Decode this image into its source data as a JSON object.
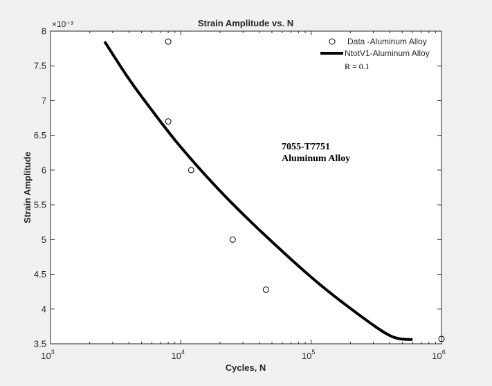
{
  "chart_data": {
    "type": "scatter",
    "title": "Strain Amplitude vs. N",
    "xlabel": "Cycles, N",
    "ylabel": "Strain Amplitude",
    "x_scale": "log",
    "xlim": [
      1000,
      1000000
    ],
    "ylim": [
      0.0035,
      0.008
    ],
    "y_exponent_label": "×10⁻³",
    "x_ticks": [
      {
        "value": 1000,
        "base": "10",
        "exp": "3"
      },
      {
        "value": 10000,
        "base": "10",
        "exp": "4"
      },
      {
        "value": 100000,
        "base": "10",
        "exp": "5"
      },
      {
        "value": 1000000,
        "base": "10",
        "exp": "6"
      }
    ],
    "y_ticks": [
      {
        "value": 0.0035,
        "label": "3.5"
      },
      {
        "value": 0.004,
        "label": "4"
      },
      {
        "value": 0.0045,
        "label": "4.5"
      },
      {
        "value": 0.005,
        "label": "5"
      },
      {
        "value": 0.0055,
        "label": "5.5"
      },
      {
        "value": 0.006,
        "label": "6"
      },
      {
        "value": 0.0065,
        "label": "6.5"
      },
      {
        "value": 0.007,
        "label": "7"
      },
      {
        "value": 0.0075,
        "label": "7.5"
      },
      {
        "value": 0.008,
        "label": "8"
      }
    ],
    "grid": false,
    "legend_position": "top-right",
    "series": [
      {
        "name": "Data -Aluminum Alloy",
        "kind": "markers",
        "marker": "circle",
        "color": "#000000",
        "x": [
          8000,
          8000,
          12000,
          25000,
          45000,
          1000000
        ],
        "y": [
          0.00785,
          0.0067,
          0.006,
          0.005,
          0.00428,
          0.00357
        ]
      },
      {
        "name": "NtotV1-Aluminum Alloy",
        "kind": "line",
        "color": "#000000",
        "x": [
          2600,
          4000,
          6000,
          10000,
          20000,
          40000,
          100000,
          200000,
          400000,
          600000
        ],
        "y": [
          0.00785,
          0.00731,
          0.00686,
          0.00633,
          0.0057,
          0.00514,
          0.00446,
          0.00401,
          0.00362,
          0.00356
        ]
      }
    ],
    "legend_note": "R = 0.1",
    "annotation": [
      "7055-T7751",
      "Aluminum Alloy"
    ]
  }
}
